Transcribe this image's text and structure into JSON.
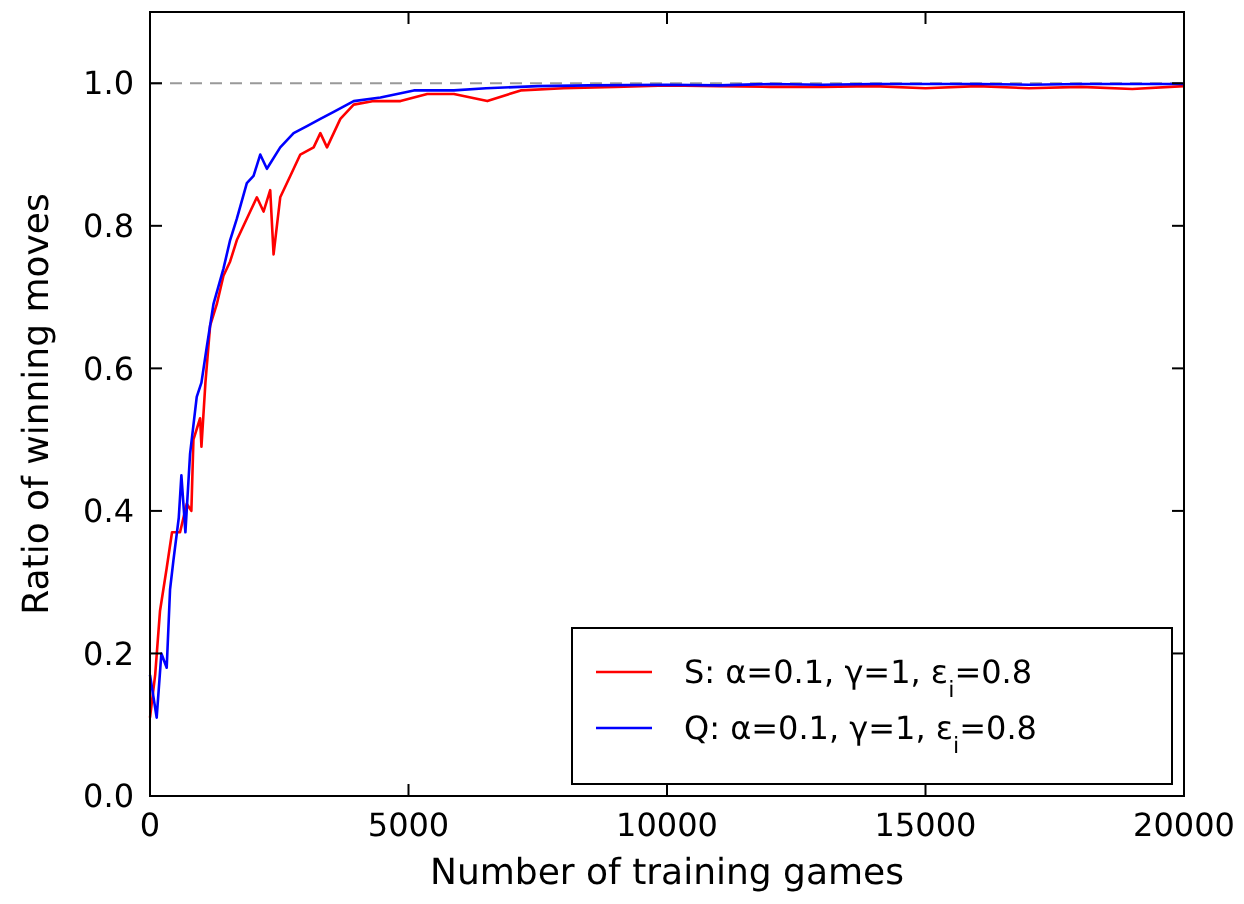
{
  "chart_data": {
    "type": "line",
    "xlabel": "Number of training games",
    "ylabel": "Ratio of winning moves",
    "xlim": [
      0,
      20000
    ],
    "xticks": [
      0,
      5000,
      10000,
      15000,
      20000
    ],
    "ylim": [
      0,
      1.1
    ],
    "yticks": [
      {
        "value": 0,
        "label": "0.0"
      },
      {
        "value": 0.2,
        "label": "0.2"
      },
      {
        "value": 0.4,
        "label": "0.4"
      },
      {
        "value": 0.6,
        "label": "0.6"
      },
      {
        "value": 0.8,
        "label": "0.8"
      },
      {
        "value": 1,
        "label": "1.0"
      }
    ],
    "grid": false,
    "legend": "bottom right",
    "line_style": "solid",
    "ref_lines": [
      {
        "axis": "y",
        "value": 1,
        "color": "#999999",
        "line_style": "dashed"
      }
    ],
    "series": [
      {
        "name": "S: α=0.1, γ=1, ε$_{i}$=0.8",
        "color": "#ff0000",
        "x": [
          0,
          100,
          194,
          323,
          426,
          581,
          711,
          800,
          840,
          969,
          995,
          1072,
          1163,
          1292,
          1421,
          1550,
          1680,
          1809,
          1938,
          2067,
          2196,
          2325,
          2390,
          2519,
          2713,
          2907,
          3165,
          3295,
          3424,
          3682,
          3940,
          4328,
          4845,
          5362,
          5879,
          6525,
          7171,
          8000,
          9000,
          10000,
          11000,
          12000,
          13000,
          14000,
          15000,
          16000,
          17000,
          18000,
          19000,
          20000
        ],
        "values": [
          0.11,
          0.17,
          0.26,
          0.32,
          0.37,
          0.37,
          0.41,
          0.4,
          0.5,
          0.53,
          0.49,
          0.58,
          0.66,
          0.69,
          0.73,
          0.75,
          0.78,
          0.8,
          0.82,
          0.84,
          0.82,
          0.85,
          0.76,
          0.84,
          0.87,
          0.9,
          0.91,
          0.93,
          0.91,
          0.95,
          0.97,
          0.975,
          0.975,
          0.985,
          0.985,
          0.975,
          0.99,
          0.993,
          0.995,
          0.997,
          0.996,
          0.995,
          0.995,
          0.996,
          0.993,
          0.996,
          0.993,
          0.995,
          0.992,
          0.996
        ]
      },
      {
        "name": "Q: α=0.1, γ=1, ε$_{i}$=0.8",
        "color": "#0000ff",
        "x": [
          0,
          129,
          220,
          323,
          388,
          452,
          556,
          607,
          685,
          775,
          904,
          995,
          1098,
          1227,
          1421,
          1550,
          1680,
          1873,
          2003,
          2132,
          2261,
          2519,
          2778,
          3036,
          3295,
          3553,
          3940,
          4457,
          5104,
          5879,
          6500,
          7500,
          8500,
          10000,
          11000,
          12000,
          13000,
          14000,
          15000,
          16000,
          17000,
          18000,
          19000,
          20000
        ],
        "values": [
          0.17,
          0.11,
          0.2,
          0.18,
          0.29,
          0.33,
          0.39,
          0.45,
          0.37,
          0.48,
          0.56,
          0.58,
          0.63,
          0.69,
          0.74,
          0.78,
          0.81,
          0.86,
          0.87,
          0.9,
          0.88,
          0.91,
          0.93,
          0.94,
          0.95,
          0.96,
          0.975,
          0.98,
          0.99,
          0.99,
          0.993,
          0.996,
          0.997,
          0.998,
          0.997,
          0.999,
          0.998,
          0.999,
          0.999,
          0.999,
          0.998,
          0.999,
          0.999,
          0.999
        ]
      }
    ]
  }
}
